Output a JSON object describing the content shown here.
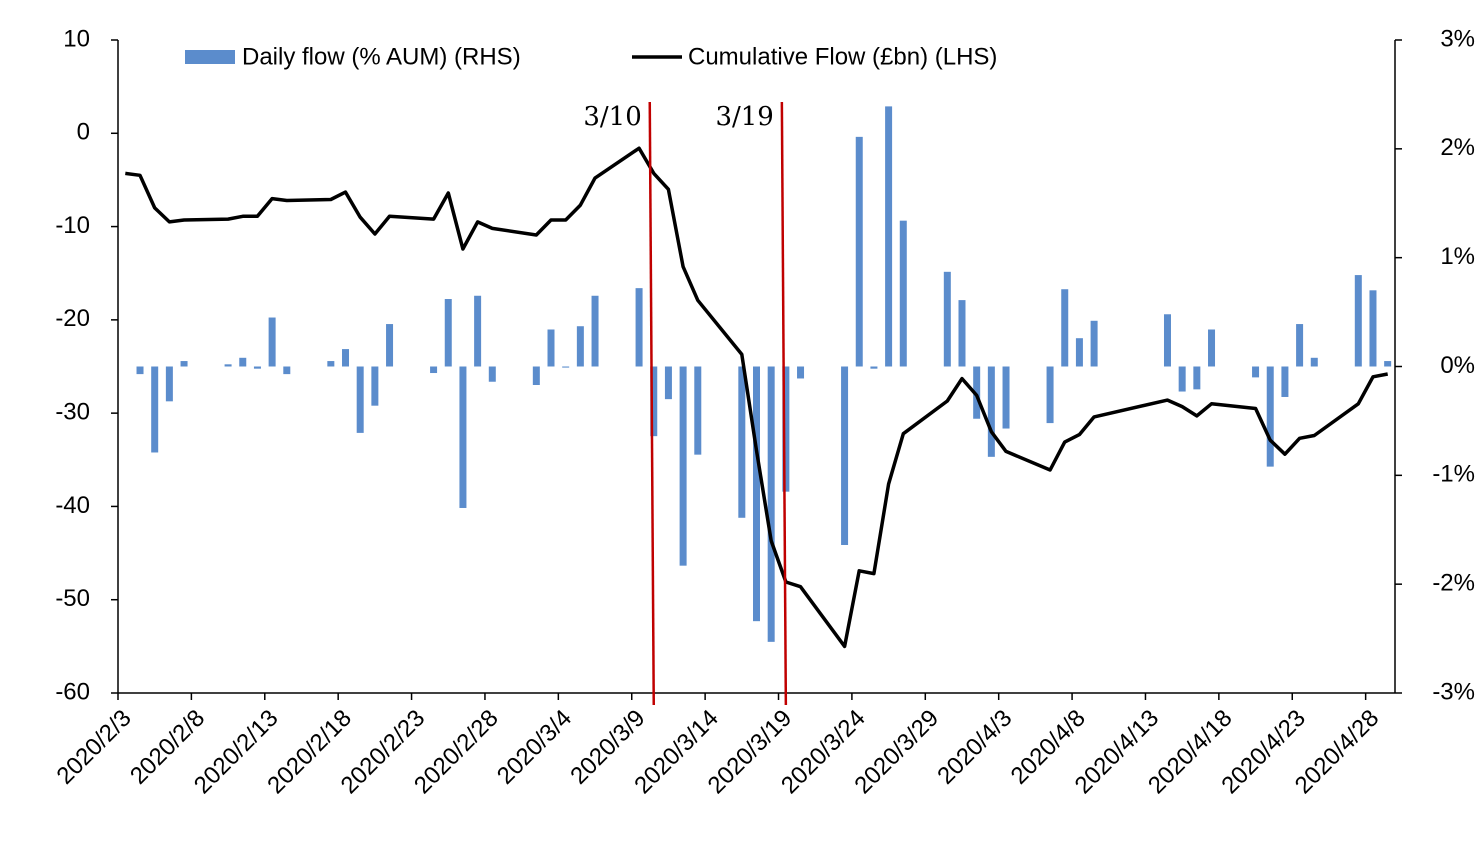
{
  "chart_data": {
    "type": "combo",
    "x": [
      "2020/2/3",
      "2020/2/4",
      "2020/2/5",
      "2020/2/6",
      "2020/2/7",
      "2020/2/10",
      "2020/2/11",
      "2020/2/12",
      "2020/2/13",
      "2020/2/14",
      "2020/2/17",
      "2020/2/18",
      "2020/2/19",
      "2020/2/20",
      "2020/2/21",
      "2020/2/24",
      "2020/2/25",
      "2020/2/26",
      "2020/2/27",
      "2020/2/28",
      "2020/3/2",
      "2020/3/3",
      "2020/3/4",
      "2020/3/5",
      "2020/3/6",
      "2020/3/9",
      "2020/3/10",
      "2020/3/11",
      "2020/3/12",
      "2020/3/13",
      "2020/3/16",
      "2020/3/17",
      "2020/3/18",
      "2020/3/19",
      "2020/3/20",
      "2020/3/23",
      "2020/3/24",
      "2020/3/25",
      "2020/3/26",
      "2020/3/27",
      "2020/3/30",
      "2020/3/31",
      "2020/4/1",
      "2020/4/2",
      "2020/4/3",
      "2020/4/6",
      "2020/4/7",
      "2020/4/8",
      "2020/4/9",
      "2020/4/14",
      "2020/4/15",
      "2020/4/16",
      "2020/4/17",
      "2020/4/20",
      "2020/4/21",
      "2020/4/22",
      "2020/4/23",
      "2020/4/24",
      "2020/4/27",
      "2020/4/28",
      "2020/4/29"
    ],
    "series": [
      {
        "name": "Daily flow (% AUM) (RHS)",
        "type": "bar",
        "axis": "y2",
        "color": "#5b8ccc",
        "values": [
          null,
          -0.07,
          -0.79,
          -0.32,
          0.05,
          0.02,
          0.08,
          -0.02,
          0.45,
          -0.07,
          0.05,
          0.16,
          -0.61,
          -0.36,
          0.39,
          -0.06,
          0.62,
          -1.3,
          0.65,
          -0.14,
          -0.17,
          0.34,
          -0.01,
          0.37,
          0.65,
          0.72,
          -0.64,
          -0.3,
          -1.83,
          -0.81,
          -1.39,
          -2.34,
          -2.53,
          -1.15,
          -0.11,
          -1.64,
          2.11,
          -0.02,
          2.39,
          1.34,
          0.87,
          0.61,
          -0.48,
          -0.83,
          -0.57,
          -0.52,
          0.71,
          0.26,
          0.42,
          0.48,
          -0.23,
          -0.21,
          0.34,
          -0.1,
          -0.92,
          -0.28,
          0.39,
          0.08,
          0.84,
          0.7,
          0.05
        ]
      },
      {
        "name": "Cumulative Flow (£bn) (LHS)",
        "type": "line",
        "color": "#000000",
        "values": [
          -4.3,
          -4.5,
          -8.0,
          -9.5,
          -9.3,
          -9.2,
          -8.9,
          -8.9,
          -7.0,
          -7.2,
          -7.1,
          -6.3,
          -9.0,
          -10.8,
          -8.9,
          -9.2,
          -6.4,
          -12.4,
          -9.5,
          -10.2,
          -10.9,
          -9.3,
          -9.3,
          -7.7,
          -4.8,
          -1.6,
          -4.3,
          -6.0,
          -14.3,
          -17.9,
          -23.7,
          -34.0,
          -43.7,
          -48.1,
          -48.6,
          -55.0,
          -46.9,
          -47.2,
          -37.6,
          -32.2,
          -28.7,
          -26.3,
          -28.1,
          -32.0,
          -34.1,
          -36.1,
          -33.1,
          -32.3,
          -30.4,
          -28.6,
          -29.3,
          -30.3,
          -29.0,
          -29.5,
          -32.9,
          -34.4,
          -32.7,
          -32.4,
          -29.0,
          -26.1,
          -25.8
        ]
      }
    ],
    "xlim": [
      "2020/2/3",
      "2020/4/30"
    ],
    "xticks": [
      "2020/2/3",
      "2020/2/8",
      "2020/2/13",
      "2020/2/18",
      "2020/2/23",
      "2020/2/28",
      "2020/3/4",
      "2020/3/9",
      "2020/3/14",
      "2020/3/19",
      "2020/3/24",
      "2020/3/29",
      "2020/4/3",
      "2020/4/8",
      "2020/4/13",
      "2020/4/18",
      "2020/4/23",
      "2020/4/28"
    ],
    "ylim": [
      -60,
      10
    ],
    "yticks": [
      -60,
      -50,
      -40,
      -30,
      -20,
      -10,
      0,
      10
    ],
    "y2lim": [
      -3,
      3
    ],
    "y2ticks": [
      {
        "value": -3,
        "label": "-3%"
      },
      {
        "value": -2,
        "label": "-2%"
      },
      {
        "value": -1,
        "label": "-1%"
      },
      {
        "value": 0,
        "label": "0%"
      },
      {
        "value": 1,
        "label": "1%"
      },
      {
        "value": 2,
        "label": "2%"
      },
      {
        "value": 3,
        "label": "3%"
      }
    ],
    "annotations": [
      {
        "text": "3/10",
        "x": "2020/3/10",
        "color": "#c00000"
      },
      {
        "text": "3/19",
        "x": "2020/3/19",
        "color": "#c00000"
      }
    ]
  }
}
